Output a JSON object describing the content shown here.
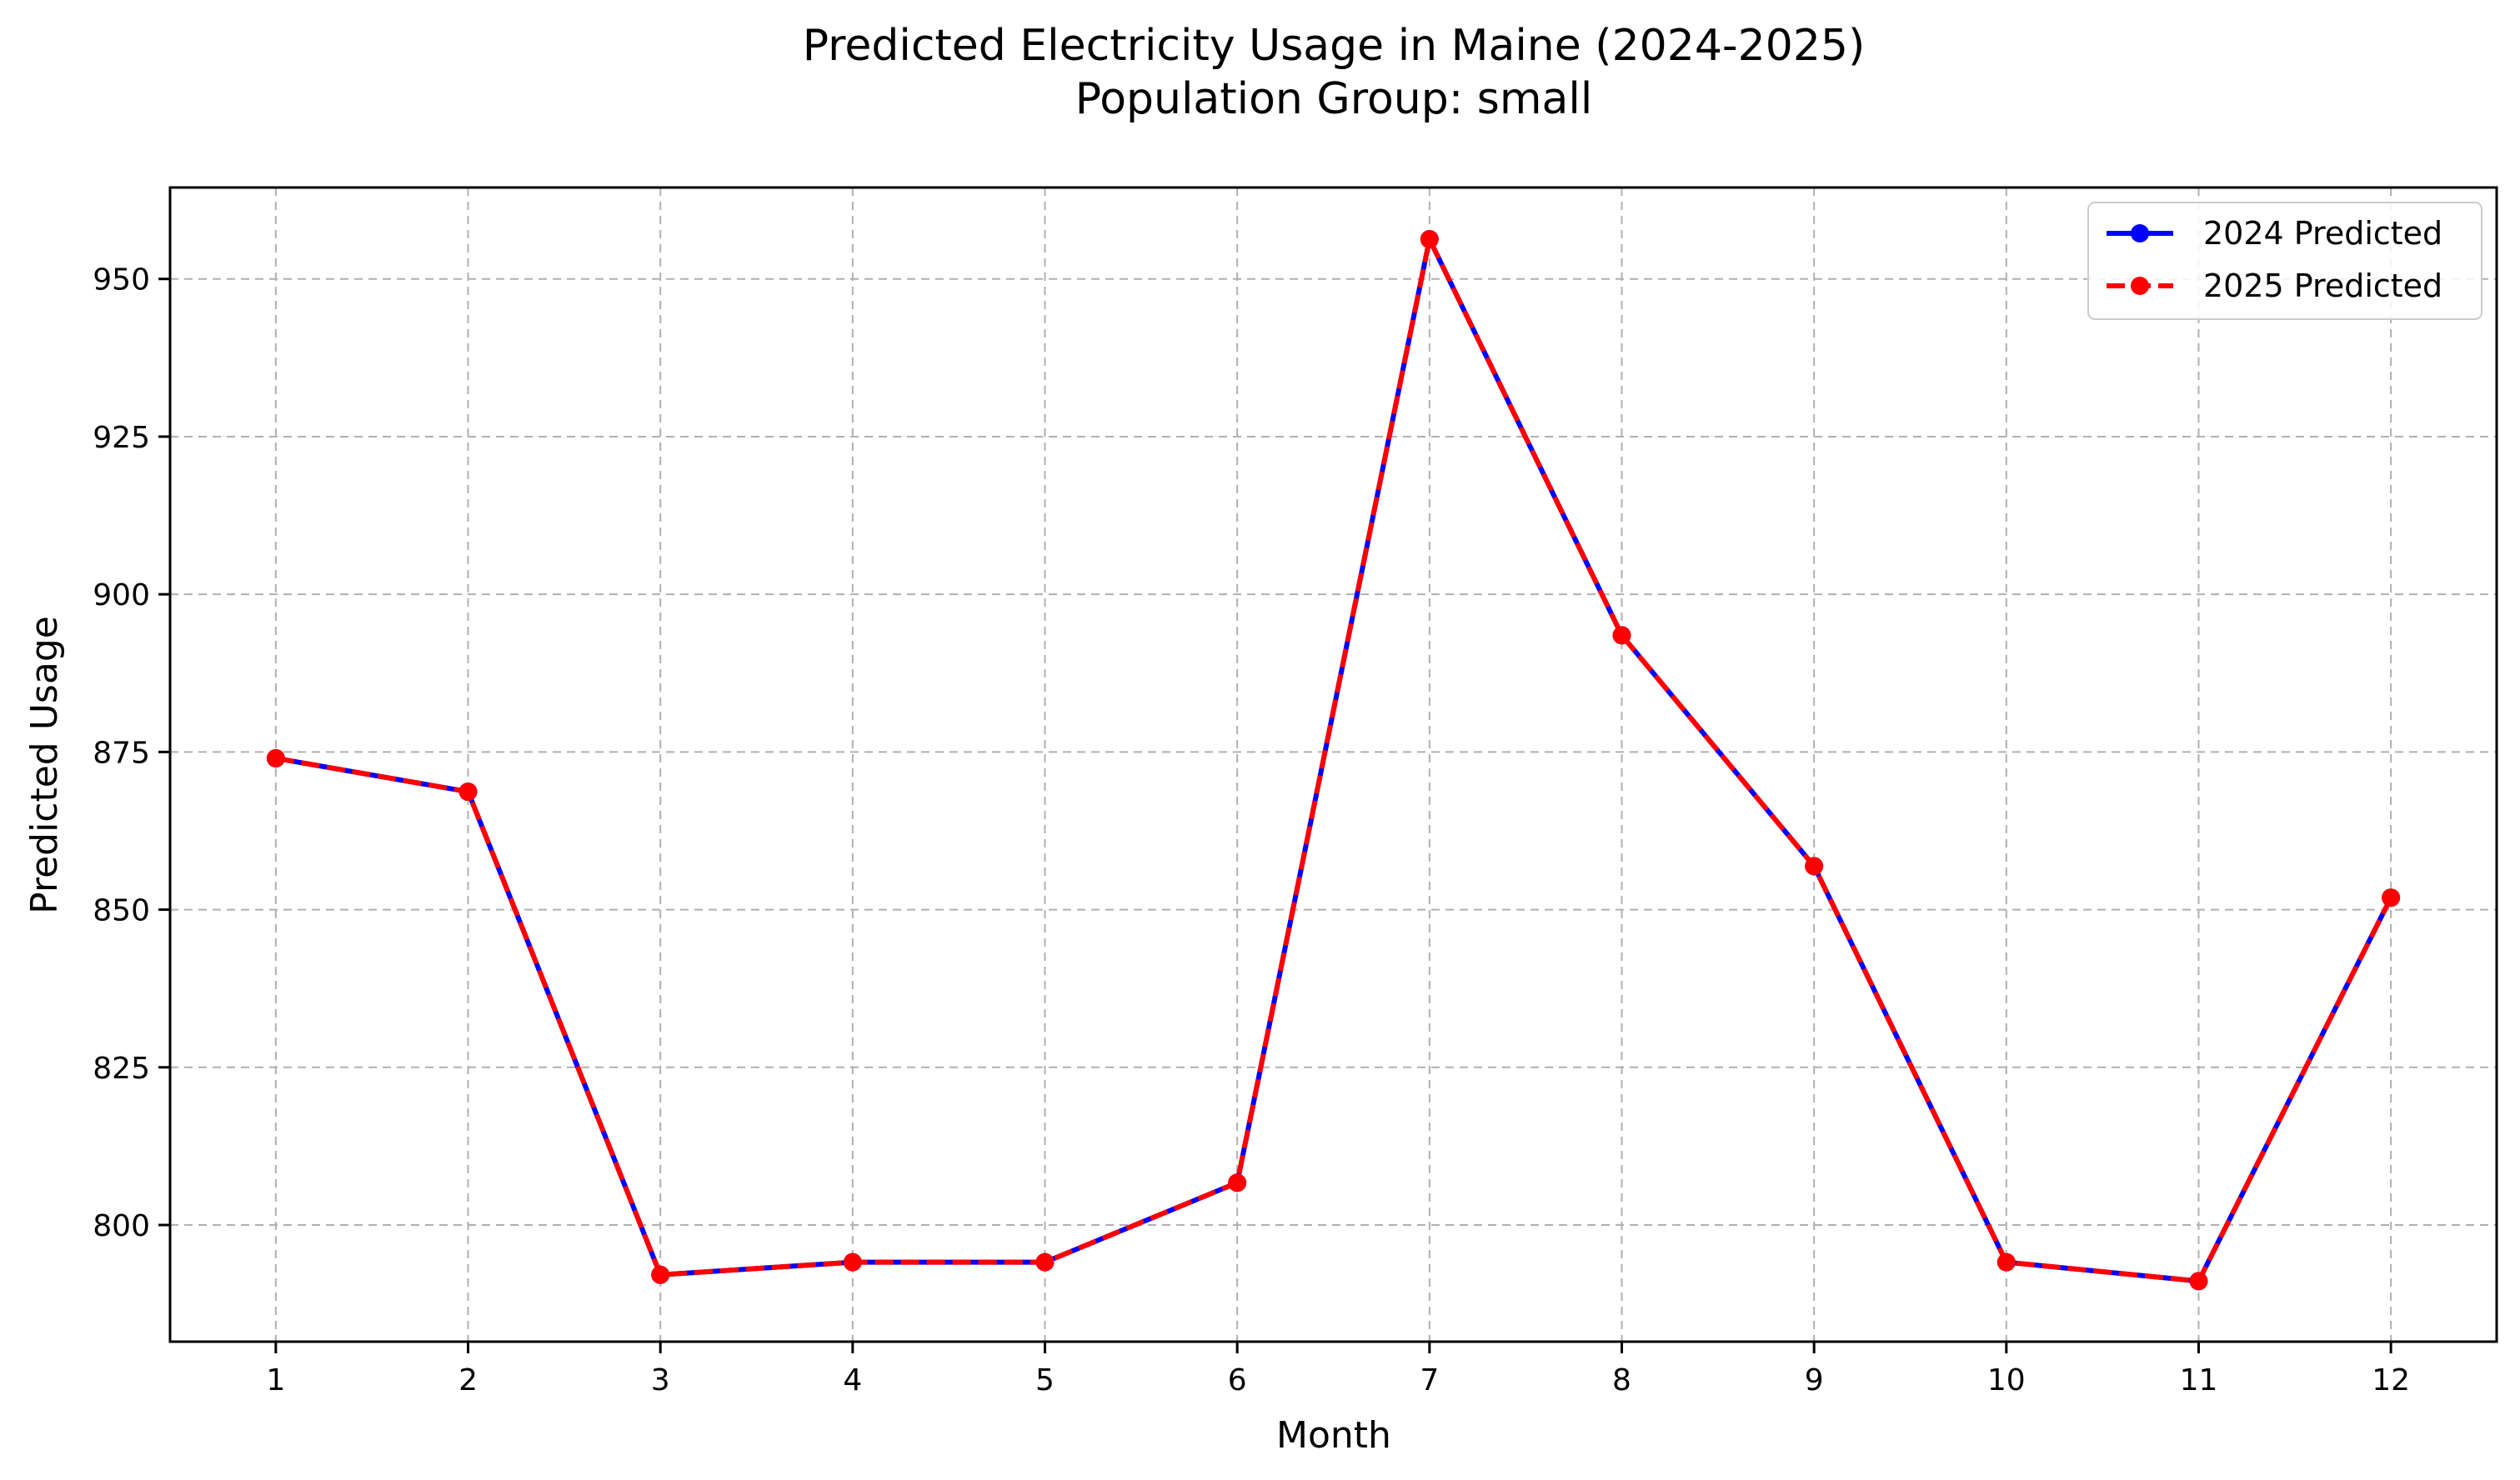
{
  "chart_data": {
    "type": "line",
    "title": "Predicted Electricity Usage in Maine (2024-2025)",
    "subtitle": "Population Group: small",
    "xlabel": "Month",
    "ylabel": "Predicted Usage",
    "x": [
      1,
      2,
      3,
      4,
      5,
      6,
      7,
      8,
      9,
      10,
      11,
      12
    ],
    "xlim": [
      0.45,
      12.55
    ],
    "ylim": [
      781.5,
      964.5
    ],
    "yticks": [
      800,
      825,
      850,
      875,
      900,
      925,
      950
    ],
    "grid": true,
    "legend_position": "top-right",
    "series": [
      {
        "name": "2024 Predicted",
        "color": "#0000ff",
        "style": "solid",
        "values": [
          874,
          868.7,
          792.1,
          794.1,
          794.1,
          806.7,
          956.3,
          893.5,
          856.9,
          794.1,
          791.1,
          851.9
        ]
      },
      {
        "name": "2025 Predicted",
        "color": "#ff0000",
        "style": "dashed",
        "values": [
          874,
          868.7,
          792.1,
          794.1,
          794.1,
          806.7,
          956.3,
          893.5,
          856.9,
          794.1,
          791.1,
          851.9
        ]
      }
    ]
  }
}
